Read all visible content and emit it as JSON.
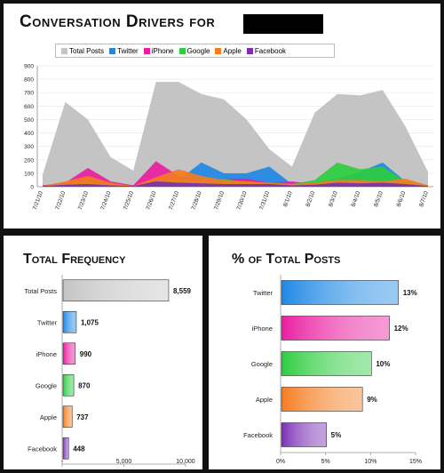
{
  "chart_data": [
    {
      "type": "area",
      "title_prefix": "Conversation Drivers for",
      "ylim": [
        0,
        900
      ],
      "yticks": [
        "0",
        "100",
        "200",
        "300",
        "400",
        "500",
        "600",
        "700",
        "800",
        "900"
      ],
      "x": [
        "7/21/10",
        "7/22/10",
        "7/23/10",
        "7/24/10",
        "7/25/10",
        "7/26/10",
        "7/27/10",
        "7/28/10",
        "7/29/10",
        "7/30/10",
        "7/31/10",
        "8/1/10",
        "8/2/10",
        "8/3/10",
        "8/4/10",
        "8/5/10",
        "8/6/10",
        "8/7/10"
      ],
      "series": [
        {
          "name": "Total Posts",
          "color": "#c4c4c4",
          "values": [
            90,
            630,
            500,
            220,
            120,
            780,
            780,
            690,
            650,
            500,
            280,
            150,
            550,
            690,
            680,
            720,
            450,
            110
          ]
        },
        {
          "name": "Twitter",
          "color": "#1e88e5",
          "values": [
            10,
            25,
            60,
            30,
            10,
            30,
            50,
            180,
            100,
            100,
            150,
            20,
            30,
            60,
            110,
            180,
            40,
            10
          ]
        },
        {
          "name": "iPhone",
          "color": "#e91ea0",
          "values": [
            10,
            30,
            140,
            40,
            10,
            190,
            80,
            50,
            60,
            60,
            30,
            40,
            20,
            40,
            60,
            40,
            30,
            10
          ]
        },
        {
          "name": "Google",
          "color": "#2ecc40",
          "values": [
            5,
            20,
            40,
            15,
            5,
            40,
            60,
            40,
            60,
            30,
            30,
            20,
            50,
            180,
            130,
            150,
            40,
            10
          ]
        },
        {
          "name": "Apple",
          "color": "#f57c1f",
          "values": [
            5,
            40,
            80,
            30,
            5,
            70,
            130,
            80,
            50,
            40,
            30,
            20,
            30,
            50,
            50,
            40,
            60,
            10
          ]
        },
        {
          "name": "Facebook",
          "color": "#7b2fb5",
          "values": [
            5,
            15,
            20,
            10,
            5,
            40,
            30,
            25,
            20,
            20,
            20,
            10,
            15,
            30,
            25,
            30,
            20,
            5
          ]
        }
      ]
    },
    {
      "type": "bar",
      "title": "Total Frequency",
      "categories": [
        "Total Posts",
        "Twitter",
        "iPhone",
        "Google",
        "Apple",
        "Facebook"
      ],
      "values": [
        8559,
        1075,
        990,
        870,
        737,
        448
      ],
      "value_labels": [
        "8,559",
        "1,075",
        "990",
        "870",
        "737",
        "448"
      ],
      "colors": [
        "#c4c4c4",
        "#1e88e5",
        "#e91ea0",
        "#2ecc40",
        "#f57c1f",
        "#7b2fb5"
      ],
      "xlim": [
        0,
        10000
      ],
      "xticks": [
        {
          "v": 0,
          "label": "-"
        },
        {
          "v": 5000,
          "label": "5,000"
        },
        {
          "v": 10000,
          "label": "10,000"
        }
      ]
    },
    {
      "type": "bar",
      "title": "% of Total Posts",
      "categories": [
        "Twitter",
        "iPhone",
        "Google",
        "Apple",
        "Facebook"
      ],
      "values": [
        13,
        12,
        10,
        9,
        5
      ],
      "value_labels": [
        "13%",
        "12%",
        "10%",
        "9%",
        "5%"
      ],
      "colors": [
        "#1e88e5",
        "#e91ea0",
        "#2ecc40",
        "#f57c1f",
        "#7b2fb5"
      ],
      "xlim": [
        0,
        15
      ],
      "xticks": [
        {
          "v": 0,
          "label": "0%"
        },
        {
          "v": 5,
          "label": "5%"
        },
        {
          "v": 10,
          "label": "10%"
        },
        {
          "v": 15,
          "label": "15%"
        }
      ]
    }
  ]
}
